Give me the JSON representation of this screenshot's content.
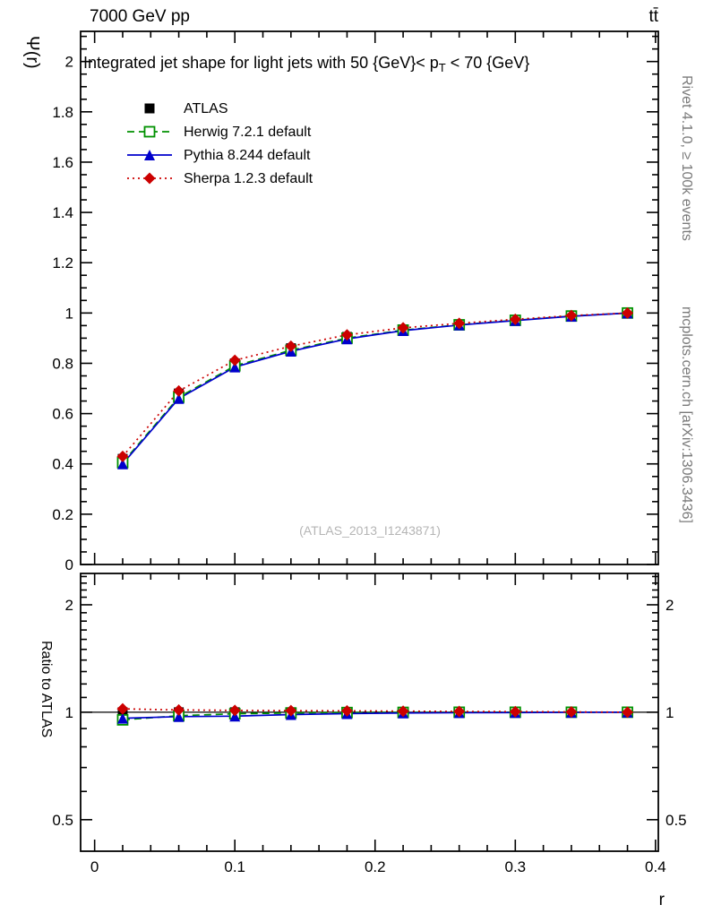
{
  "header": {
    "left": "7000 GeV pp",
    "right": "tt̄"
  },
  "title": {
    "pre": "Integrated jet shape for light jets with 50 {GeV}< p",
    "sub": "T",
    "post": " < 70 {GeV}"
  },
  "watermark": "(ATLAS_2013_I1243871)",
  "side_notes": {
    "top": "Rivet 4.1.0, ≥ 100k events",
    "bottom": "mcplots.cern.ch [arXiv:1306.3436]"
  },
  "chart_data": {
    "type": "line",
    "title": "Integrated jet shape for light jets with 50 {GeV}< p_T < 70 {GeV}",
    "xlabel": "r",
    "ylabel": "Ψ(r)",
    "ratio_ylabel": "Ratio to ATLAS",
    "xlim": [
      -0.01,
      0.402
    ],
    "ylim": [
      0,
      2.12
    ],
    "ratio_ylim": [
      0.408,
      2.448
    ],
    "ratio_scale": "log",
    "x_ticks": [
      0,
      0.1,
      0.2,
      0.3,
      0.4
    ],
    "y_ticks": [
      0,
      0.2,
      0.4,
      0.6,
      0.8,
      1,
      1.2,
      1.4,
      1.6,
      1.8,
      2
    ],
    "ratio_ticks": [
      0.5,
      1,
      2
    ],
    "legend_position": "top-left",
    "grid": false,
    "x": [
      0.02,
      0.06,
      0.1,
      0.14,
      0.18,
      0.22,
      0.26,
      0.3,
      0.34,
      0.38
    ],
    "series": [
      {
        "name": "ATLAS",
        "color": "#000000",
        "line": "none",
        "marker": "square-filled",
        "values": [
          0.42,
          0.68,
          0.8,
          0.86,
          0.905,
          0.935,
          0.955,
          0.972,
          0.988,
          1.0
        ],
        "ratio": [
          1,
          1,
          1,
          1,
          1,
          1,
          1,
          1,
          1,
          1
        ]
      },
      {
        "name": "Herwig 7.2.1 default",
        "color": "#009100",
        "line": "dashed",
        "marker": "square-open",
        "values": [
          0.405,
          0.665,
          0.79,
          0.852,
          0.9,
          0.932,
          0.953,
          0.971,
          0.988,
          1.0
        ],
        "ratio": [
          0.952,
          0.978,
          0.99,
          0.995,
          0.998,
          0.999,
          1.0,
          1.0,
          1.0,
          1.0
        ]
      },
      {
        "name": "Pythia 8.244 default",
        "color": "#0000cc",
        "line": "solid",
        "marker": "triangle-filled",
        "values": [
          0.4,
          0.66,
          0.785,
          0.848,
          0.897,
          0.93,
          0.952,
          0.97,
          0.987,
          1.0
        ],
        "ratio": [
          0.962,
          0.972,
          0.975,
          0.985,
          0.991,
          0.995,
          0.997,
          0.998,
          0.999,
          1.0
        ]
      },
      {
        "name": "Sherpa 1.2.3 default",
        "color": "#cc0000",
        "line": "dotted",
        "marker": "diamond-filled",
        "values": [
          0.43,
          0.69,
          0.812,
          0.868,
          0.913,
          0.941,
          0.959,
          0.975,
          0.99,
          1.0
        ],
        "ratio": [
          1.022,
          1.015,
          1.012,
          1.01,
          1.009,
          1.007,
          1.005,
          1.004,
          1.002,
          1.0
        ]
      }
    ]
  }
}
